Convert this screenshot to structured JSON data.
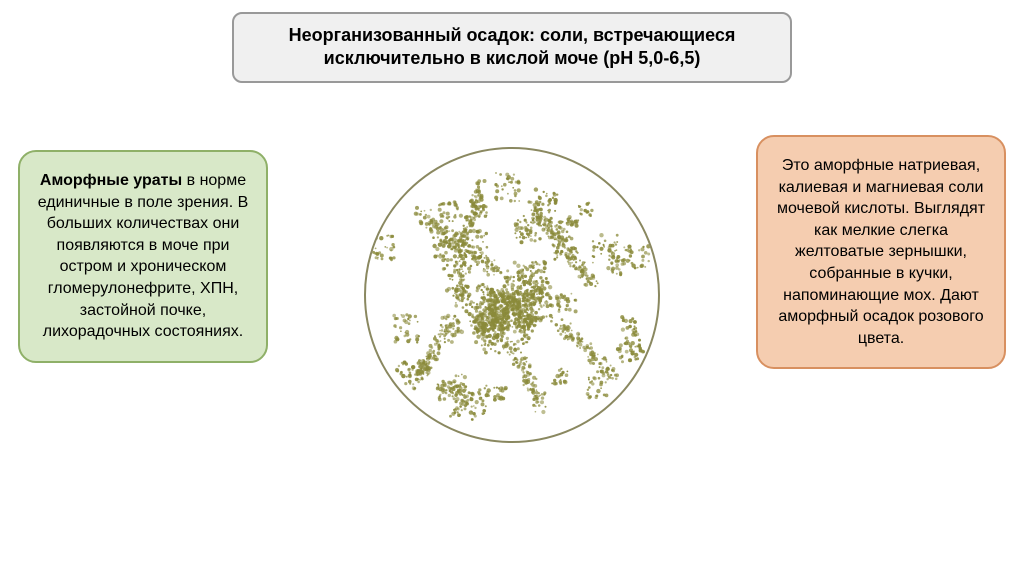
{
  "title": {
    "line1": "Неорганизованный осадок: соли, встречающиеся",
    "line2": "исключительно в кислой моче (pH 5,0-6,5)"
  },
  "leftBox": {
    "boldPart": "Аморфные ураты",
    "rest": " в норме единичные в поле зрения. В больших количествах они появляются в моче при остром и хроническом гломерулонефрите, ХПН, застойной почке, лихорадочных состояниях."
  },
  "rightBox": {
    "text": "Это аморфные натриевая, калиевая и магниевая соли мочевой кислоты. Выглядят как мелкие слегка желтоватые зернышки, собранные в кучки, напоминающие мох. Дают аморфный осадок розового цвета."
  },
  "colors": {
    "titleBg": "#f0f0f0",
    "titleBorder": "#999999",
    "leftBg": "#d8e8c8",
    "leftBorder": "#8fb068",
    "rightBg": "#f5cdb0",
    "rightBorder": "#d89060",
    "microscopeBorder": "#8a8860",
    "particleColor": "#8a8a3a"
  },
  "microscope": {
    "radius": 148,
    "particleClusters": 55,
    "denseCenter": true
  }
}
